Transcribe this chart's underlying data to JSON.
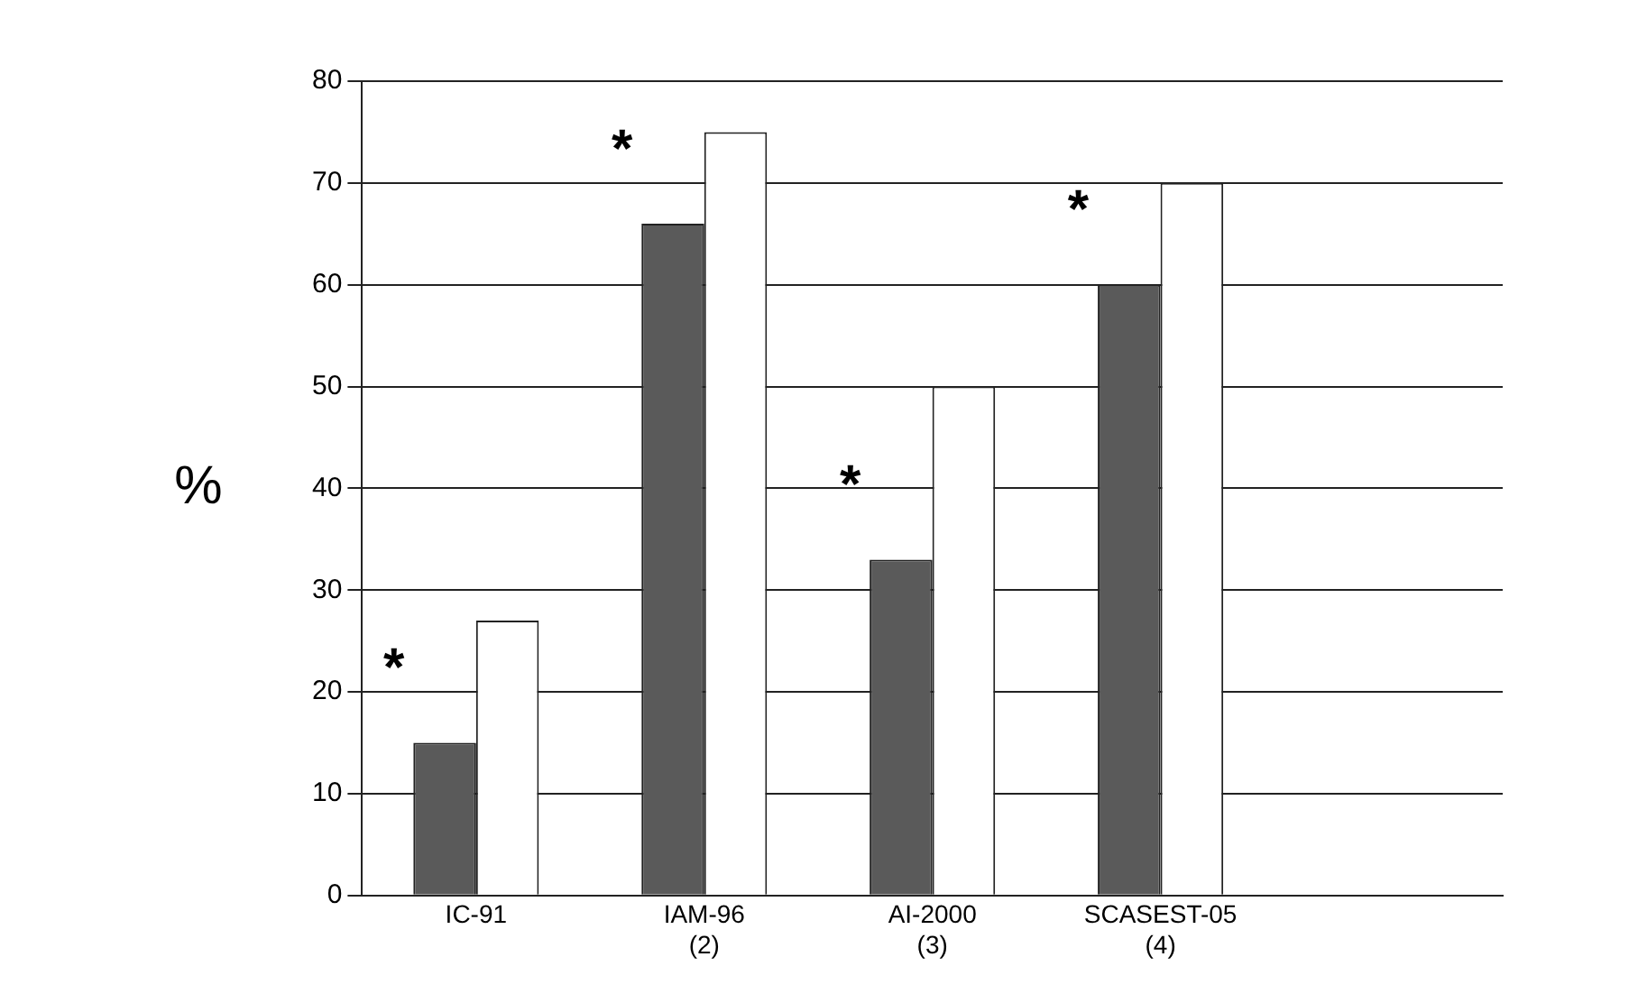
{
  "chart_data": {
    "type": "bar",
    "ylabel": "%",
    "categories": [
      "IC-91",
      "IAM-96\n(2)",
      "AI-2000\n(3)",
      "SCASEST-05\n(4)",
      null
    ],
    "series": [
      {
        "color": "#5a5a5a",
        "values": [
          15,
          66,
          33,
          60,
          null
        ]
      },
      {
        "color": "#ffffff",
        "values": [
          27,
          75,
          50,
          70,
          null
        ]
      }
    ],
    "ylim": [
      0,
      80
    ],
    "yticks": [
      0,
      10,
      20,
      30,
      40,
      50,
      60,
      70,
      80
    ],
    "grid": "y",
    "legend": false,
    "annotations": [
      "*",
      "*",
      "*",
      "*"
    ]
  }
}
